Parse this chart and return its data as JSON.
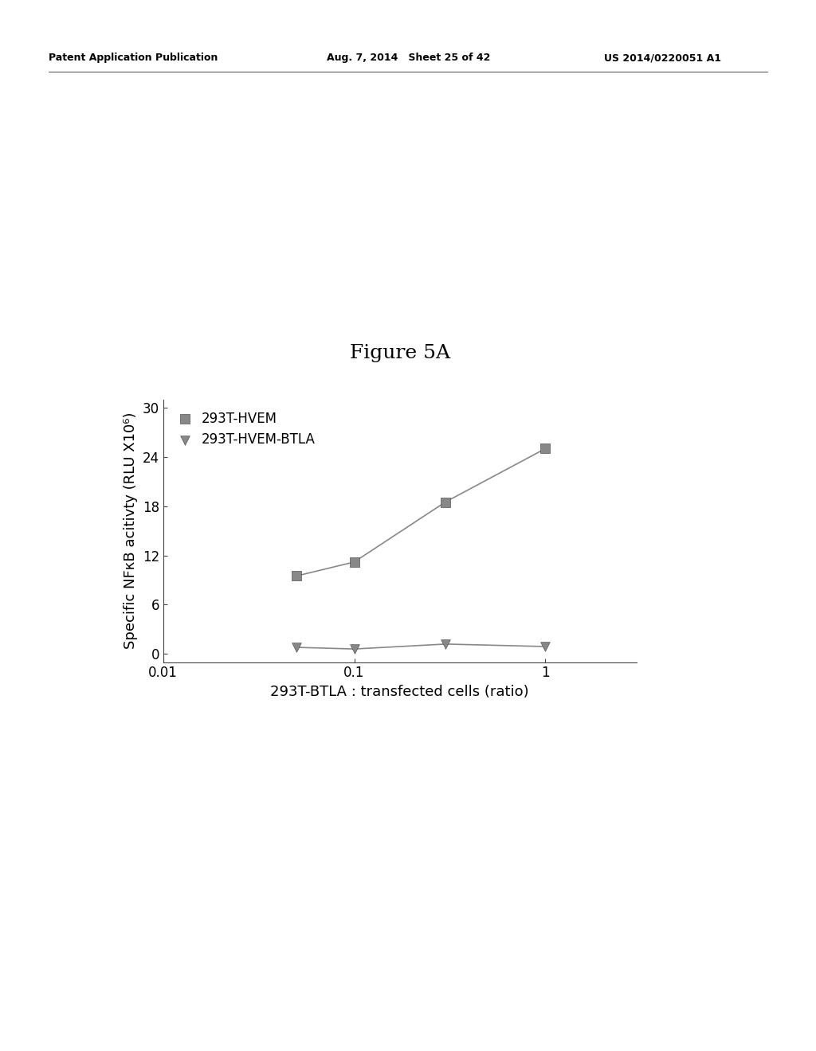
{
  "title": "Figure 5A",
  "xlabel": "293T-BTLA : transfected cells (ratio)",
  "ylabel": "Specific NFκB acitivty (RLU X10⁶)",
  "series1_label": "293T-HVEM",
  "series2_label": "293T-HVEM-BTLA",
  "series1_x": [
    0.05,
    0.1,
    0.3,
    1.0
  ],
  "series1_y": [
    9.5,
    11.2,
    18.5,
    25.0
  ],
  "series2_x": [
    0.05,
    0.1,
    0.3,
    1.0
  ],
  "series2_y": [
    0.8,
    0.6,
    1.2,
    0.9
  ],
  "xlim_log": [
    0.01,
    3.0
  ],
  "ylim": [
    -1,
    31
  ],
  "yticks": [
    0,
    6,
    12,
    18,
    24,
    30
  ],
  "xticks": [
    0.01,
    0.1,
    1.0
  ],
  "xtick_labels": [
    "0.01",
    "0.1",
    "1"
  ],
  "line_color": "#888888",
  "marker_color1": "#888888",
  "marker_color2": "#888888",
  "background_color": "#ffffff",
  "title_fontsize": 18,
  "label_fontsize": 13,
  "tick_fontsize": 12,
  "legend_fontsize": 12,
  "header_left": "Patent Application Publication",
  "header_mid": "Aug. 7, 2014   Sheet 25 of 42",
  "header_right": "US 2014/0220051 A1"
}
